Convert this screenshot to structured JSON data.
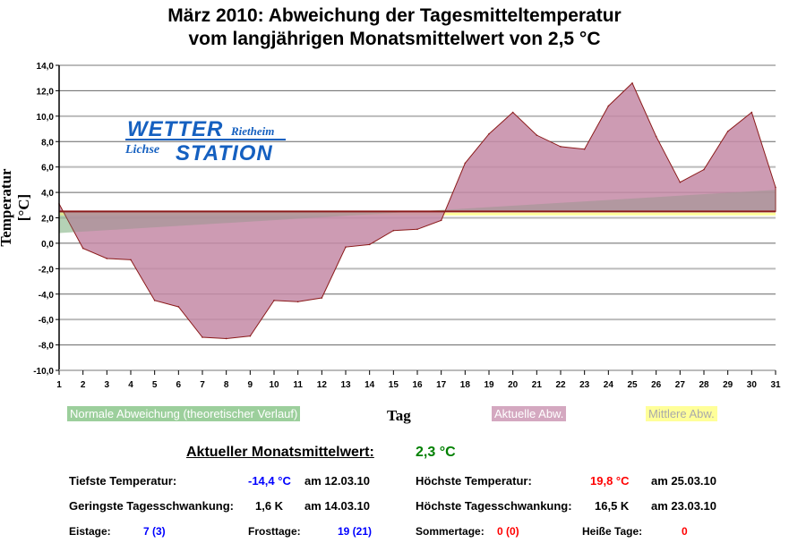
{
  "title_line1": "März 2010: Abweichung der Tagesmitteltemperatur",
  "title_line2": "vom langjährigen Monatsmittelwert von 2,5 °C",
  "logo": {
    "word1": "WETTER",
    "word2": "STATION",
    "place1": "Rietheim",
    "place2": "Lichse"
  },
  "colors": {
    "actual": "#c48aa6",
    "line": "#8b1a1a",
    "normal": "#9ccf9c",
    "mean": "#ffff99",
    "min": "#0000ff",
    "max": "#ff0000",
    "avg": "#008000"
  },
  "chart_data": {
    "type": "area",
    "title": "März 2010: Abweichung der Tagesmitteltemperatur vom langjährigen Monatsmittelwert von 2,5 °C",
    "xlabel": "Tag",
    "ylabel": "Temperatur [°C]",
    "baseline": 2.5,
    "ylim": [
      -10,
      14
    ],
    "yticks": [
      "14,0",
      "12,0",
      "10,0",
      "8,0",
      "6,0",
      "4,0",
      "2,0",
      "0,0",
      "-2,0",
      "-4,0",
      "-6,0",
      "-8,0",
      "-10,0"
    ],
    "ytick_values": [
      14,
      12,
      10,
      8,
      6,
      4,
      2,
      0,
      -2,
      -4,
      -6,
      -8,
      -10
    ],
    "x": [
      1,
      2,
      3,
      4,
      5,
      6,
      7,
      8,
      9,
      10,
      11,
      12,
      13,
      14,
      15,
      16,
      17,
      18,
      19,
      20,
      21,
      22,
      23,
      24,
      25,
      26,
      27,
      28,
      29,
      30,
      31
    ],
    "series": [
      {
        "name": "Aktuelle Abw.",
        "values": [
          3.1,
          -0.4,
          -1.2,
          -1.3,
          -4.5,
          -5.0,
          -7.4,
          -7.5,
          -7.3,
          -4.5,
          -4.6,
          -4.3,
          -0.3,
          -0.1,
          1.0,
          1.1,
          1.8,
          6.3,
          8.6,
          10.3,
          8.5,
          7.6,
          7.4,
          10.8,
          12.6,
          8.4,
          4.8,
          5.8,
          8.8,
          10.3,
          4.4
        ]
      },
      {
        "name": "Normale Abweichung (theoretischer Verlauf)",
        "start": 0.8,
        "end": 4.2
      },
      {
        "name": "Mittlere Abw.",
        "value": 2.3
      }
    ],
    "legend": [
      "Normale Abweichung (theoretischer Verlauf)",
      "Aktuelle Abw.",
      "Mittlere Abw."
    ],
    "legend_position": "bottom",
    "grid": true
  },
  "stats": {
    "avg_label": "Aktueller Monatsmittelwert:",
    "avg_value": "2,3 °C",
    "min_label": "Tiefste Temperatur:",
    "min_value": "-14,4 °C",
    "min_date": "am 12.03.10",
    "max_label": "Höchste Temperatur:",
    "max_value": "19,8 °C",
    "max_date": "am 25.03.10",
    "minrange_label": "Geringste Tagesschwankung:",
    "minrange_value": "1,6 K",
    "minrange_date": "am 14.03.10",
    "maxrange_label": "Höchste Tagesschwankung:",
    "maxrange_value": "16,5 K",
    "maxrange_date": "am 23.03.10",
    "ice_label": "Eistage:",
    "ice_value": "7 (3)",
    "frost_label": "Frosttage:",
    "frost_value": "19 (21)",
    "summer_label": "Sommertage:",
    "summer_value": "0 (0)",
    "hot_label": "Heiße Tage:",
    "hot_value": "0"
  }
}
